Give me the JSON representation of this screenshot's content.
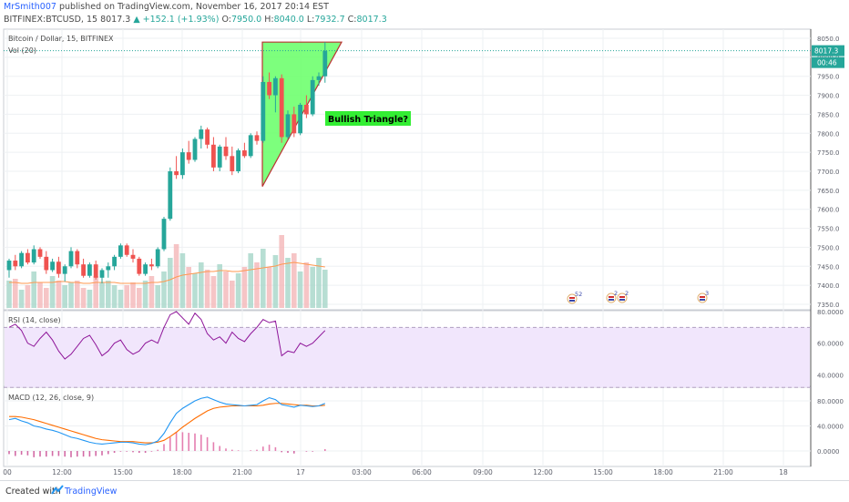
{
  "header": {
    "user": "MrSmith007",
    "published": "published on TradingView.com, November 16, 2017 20:14 EST",
    "symbol": "BITFINEX:BTCUSD, 15",
    "last": "8017.3",
    "change": "▲ +152.1 (+1.93%)",
    "o_label": "O:",
    "o_value": "7950.0",
    "h_label": "H:",
    "h_value": "8040.0",
    "l_label": "L:",
    "l_value": "7932.7",
    "c_label": "C:",
    "c_value": "8017.3"
  },
  "footer": {
    "created": "Created with",
    "brand": "TradingView"
  },
  "colors": {
    "up": "#26a69a",
    "down": "#ef5350",
    "rsi": "#8e1599",
    "macd": "#2196f3",
    "signal": "#ff6d00",
    "triangle": "#66ff66",
    "note_bg": "#33ee33"
  },
  "chart_data": [
    {
      "type": "candlestick",
      "title": "Bitcoin / Dollar, 15, BITFINEX",
      "legend": "Vol (20)",
      "price_label": "8017.3",
      "countdown": "00:46",
      "annotation": "Bullish Triangle?",
      "ylim": [
        7300,
        8075
      ],
      "yticks": [
        "8050.0",
        "8000.0",
        "7950.0",
        "7900.0",
        "7850.0",
        "7800.0",
        "7750.0",
        "7700.0",
        "7650.0",
        "7600.0",
        "7550.0",
        "7500.0",
        "7450.0",
        "7400.0",
        "7350.0"
      ],
      "xticks": [
        "00",
        "12:00",
        "15:00",
        "18:00",
        "21:00",
        "17",
        "03:00",
        "06:00",
        "09:00",
        "12:00",
        "15:00",
        "18:00",
        "21:00",
        "18"
      ],
      "events": [
        "52",
        "2",
        "2",
        "3"
      ],
      "candles": [
        [
          7440,
          7470,
          7420,
          7465
        ],
        [
          7465,
          7480,
          7440,
          7450
        ],
        [
          7450,
          7490,
          7445,
          7485
        ],
        [
          7485,
          7495,
          7455,
          7460
        ],
        [
          7460,
          7505,
          7455,
          7495
        ],
        [
          7495,
          7500,
          7470,
          7475
        ],
        [
          7475,
          7490,
          7430,
          7440
        ],
        [
          7440,
          7470,
          7435,
          7462
        ],
        [
          7462,
          7475,
          7420,
          7430
        ],
        [
          7430,
          7455,
          7410,
          7450
        ],
        [
          7450,
          7500,
          7445,
          7490
        ],
        [
          7490,
          7495,
          7445,
          7455
        ],
        [
          7455,
          7470,
          7420,
          7425
        ],
        [
          7425,
          7460,
          7420,
          7455
        ],
        [
          7455,
          7465,
          7415,
          7420
        ],
        [
          7420,
          7445,
          7405,
          7440
        ],
        [
          7440,
          7460,
          7420,
          7450
        ],
        [
          7450,
          7480,
          7440,
          7475
        ],
        [
          7475,
          7510,
          7470,
          7505
        ],
        [
          7505,
          7510,
          7475,
          7480
        ],
        [
          7480,
          7495,
          7460,
          7470
        ],
        [
          7470,
          7475,
          7425,
          7430
        ],
        [
          7430,
          7460,
          7425,
          7455
        ],
        [
          7455,
          7470,
          7440,
          7450
        ],
        [
          7450,
          7500,
          7445,
          7495
        ],
        [
          7495,
          7580,
          7490,
          7575
        ],
        [
          7575,
          7710,
          7570,
          7700
        ],
        [
          7700,
          7740,
          7680,
          7690
        ],
        [
          7690,
          7760,
          7680,
          7750
        ],
        [
          7750,
          7780,
          7720,
          7730
        ],
        [
          7730,
          7790,
          7725,
          7785
        ],
        [
          7785,
          7820,
          7760,
          7810
        ],
        [
          7810,
          7815,
          7760,
          7770
        ],
        [
          7770,
          7790,
          7700,
          7710
        ],
        [
          7710,
          7770,
          7700,
          7765
        ],
        [
          7765,
          7790,
          7730,
          7740
        ],
        [
          7740,
          7765,
          7690,
          7700
        ],
        [
          7700,
          7760,
          7695,
          7755
        ],
        [
          7755,
          7775,
          7735,
          7740
        ],
        [
          7740,
          7800,
          7735,
          7795
        ],
        [
          7795,
          7805,
          7770,
          7780
        ],
        [
          7780,
          7950,
          7775,
          7935
        ],
        [
          7935,
          7960,
          7890,
          7900
        ],
        [
          7900,
          7950,
          7855,
          7945
        ],
        [
          7945,
          7955,
          7775,
          7790
        ],
        [
          7790,
          7860,
          7785,
          7850
        ],
        [
          7850,
          7870,
          7790,
          7800
        ],
        [
          7800,
          7880,
          7795,
          7875
        ],
        [
          7875,
          7900,
          7840,
          7850
        ],
        [
          7850,
          7950,
          7845,
          7940
        ],
        [
          7940,
          7960,
          7925,
          7950
        ],
        [
          7950,
          8040,
          7933,
          8017
        ]
      ],
      "volume": [
        30,
        32,
        20,
        25,
        40,
        28,
        22,
        35,
        30,
        25,
        28,
        30,
        22,
        20,
        35,
        28,
        30,
        25,
        20,
        25,
        28,
        22,
        30,
        35,
        25,
        40,
        55,
        70,
        60,
        45,
        38,
        50,
        42,
        35,
        48,
        40,
        30,
        38,
        45,
        60,
        50,
        65,
        45,
        58,
        80,
        55,
        60,
        40,
        50,
        45,
        55,
        42
      ],
      "volume_ma": [
        28,
        28,
        27,
        27,
        28,
        28,
        28,
        28,
        29,
        29,
        28,
        28,
        27,
        27,
        28,
        28,
        28,
        28,
        27,
        27,
        27,
        27,
        27,
        28,
        28,
        29,
        31,
        34,
        36,
        37,
        38,
        39,
        40,
        40,
        41,
        41,
        40,
        40,
        41,
        42,
        43,
        44,
        45,
        46,
        48,
        49,
        50,
        49,
        48,
        47,
        46,
        45
      ]
    },
    {
      "type": "line",
      "legend": "RSI (14, close)",
      "ylim": [
        30,
        80
      ],
      "yticks": [
        "80.0000",
        "60.0000",
        "40.0000"
      ],
      "values": [
        70,
        72,
        68,
        60,
        58,
        63,
        67,
        62,
        55,
        50,
        53,
        58,
        63,
        65,
        59,
        52,
        55,
        60,
        62,
        56,
        53,
        55,
        60,
        62,
        60,
        70,
        78,
        80,
        76,
        72,
        79,
        75,
        66,
        62,
        64,
        60,
        67,
        63,
        61,
        66,
        70,
        75,
        73,
        74,
        52,
        55,
        54,
        60,
        58,
        60,
        64,
        68
      ]
    },
    {
      "type": "line",
      "legend": "MACD (12, 26, close, 9)",
      "ylim": [
        -15,
        100
      ],
      "yticks": [
        "80.0000",
        "40.0000",
        "0.0000"
      ],
      "series": [
        {
          "values": [
            50,
            52,
            48,
            45,
            40,
            38,
            35,
            33,
            30,
            26,
            22,
            20,
            17,
            14,
            12,
            11,
            12,
            13,
            14,
            14,
            13,
            11,
            10,
            12,
            16,
            28,
            45,
            60,
            68,
            74,
            80,
            84,
            86,
            82,
            78,
            75,
            74,
            73,
            72,
            73,
            74,
            80,
            85,
            82,
            74,
            72,
            70,
            73,
            72,
            71,
            72,
            76
          ]
        },
        {
          "values": [
            55,
            55,
            54,
            52,
            50,
            47,
            44,
            41,
            38,
            35,
            32,
            29,
            26,
            23,
            20,
            18,
            17,
            16,
            15,
            15,
            15,
            14,
            13,
            13,
            14,
            17,
            23,
            30,
            38,
            45,
            52,
            58,
            64,
            68,
            70,
            71,
            72,
            72,
            72,
            72,
            72,
            73,
            75,
            76,
            76,
            75,
            74,
            73,
            73,
            72,
            72,
            73
          ]
        },
        {
          "values": [
            -5,
            -8,
            -6,
            -7,
            -10,
            -9,
            -9,
            -8,
            -8,
            -9,
            -10,
            -9,
            -9,
            -9,
            -8,
            -7,
            -5,
            -3,
            -1,
            -1,
            -2,
            -3,
            -3,
            -1,
            2,
            11,
            22,
            30,
            30,
            29,
            28,
            26,
            22,
            14,
            8,
            4,
            2,
            1,
            0,
            1,
            2,
            7,
            10,
            6,
            -2,
            -3,
            -4,
            0,
            -1,
            -1,
            0,
            3
          ]
        }
      ]
    }
  ]
}
